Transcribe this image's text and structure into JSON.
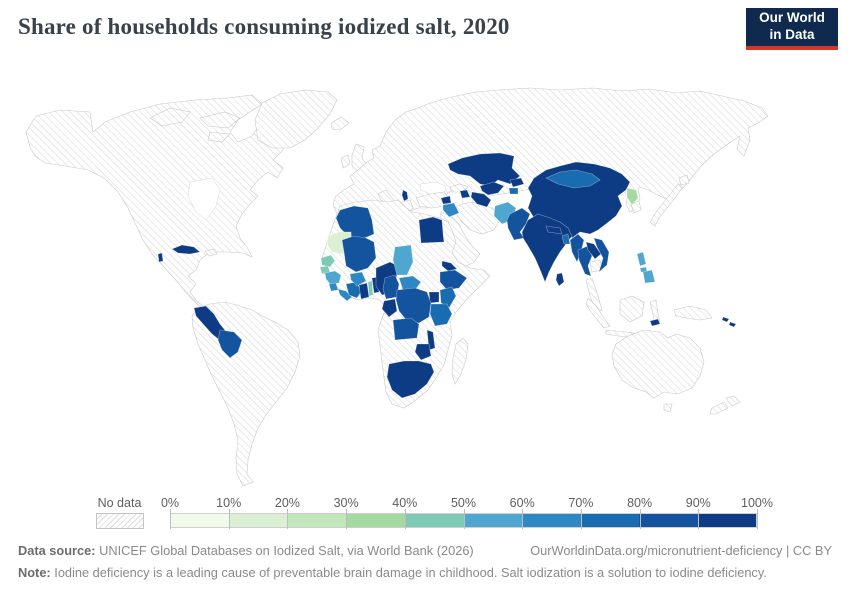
{
  "header": {
    "title": "Share of households consuming iodized salt, 2020",
    "logo_line1": "Our World",
    "logo_line2": "in Data"
  },
  "legend": {
    "no_data_label": "No data",
    "tick_labels": [
      "0%",
      "10%",
      "20%",
      "30%",
      "40%",
      "50%",
      "60%",
      "70%",
      "80%",
      "90%",
      "100%"
    ]
  },
  "footer": {
    "source_label": "Data source:",
    "source_text": " UNICEF Global Databases on Iodized Salt, via World Bank (2026)",
    "link_text": "OurWorldinData.org/micronutrient-deficiency | CC BY",
    "note_label": "Note:",
    "note_text": " Iodine deficiency is a leading cause of preventable brain damage in childhood. Salt iodization is a solution to iodine deficiency."
  },
  "chart_data": {
    "type": "choropleth_map",
    "title": "Share of households consuming iodized salt, 2020",
    "year": 2020,
    "unit": "% of households",
    "no_data_style": "diagonal-hatch",
    "color_scale": {
      "bins": [
        {
          "range": [
            0,
            10
          ],
          "color": "#f1faeb"
        },
        {
          "range": [
            10,
            20
          ],
          "color": "#dbf0d3"
        },
        {
          "range": [
            20,
            30
          ],
          "color": "#c1e6ba"
        },
        {
          "range": [
            30,
            40
          ],
          "color": "#a4d9a0"
        },
        {
          "range": [
            40,
            50
          ],
          "color": "#7fcab4"
        },
        {
          "range": [
            50,
            60
          ],
          "color": "#4fa6ce"
        },
        {
          "range": [
            60,
            70
          ],
          "color": "#2d88c3"
        },
        {
          "range": [
            70,
            80
          ],
          "color": "#1a6cb1"
        },
        {
          "range": [
            80,
            90
          ],
          "color": "#14549e"
        },
        {
          "range": [
            90,
            100
          ],
          "color": "#0e3c84"
        }
      ]
    },
    "countries": {
      "Cuba": 95,
      "Belize": 95,
      "Peru": 95,
      "Bolivia": 85,
      "Albania": 95,
      "Algeria": 85,
      "Egypt": 95,
      "Mauritania": 15,
      "Mali": 85,
      "Senegal": 45,
      "Gambia and Guinea-Bissau": 45,
      "Guinea": 55,
      "Sierra Leone": 65,
      "Liberia": 65,
      "Cote d'Ivoire": 75,
      "Burkina Faso": 65,
      "Ghana": 95,
      "Togo": 45,
      "Benin": 95,
      "Nigeria": 95,
      "Chad": 55,
      "Cameroon": 85,
      "Central African Republic": 65,
      "Eritrea": 95,
      "Ethiopia": 85,
      "Uganda": 95,
      "Kenya": 75,
      "Tanzania": 75,
      "Rwanda and Burundi": 95,
      "Democratic Republic of Congo": 85,
      "Congo": 95,
      "Angola": 85,
      "Malawi": 95,
      "Zimbabwe": 95,
      "South Africa": 95,
      "Syria": 95,
      "Iraq": 65,
      "Azerbaijan": 95,
      "Kazakhstan": 95,
      "Uzbekistan": 95,
      "Turkmenistan": 95,
      "Kyrgyzstan": 95,
      "Tajikistan": 75,
      "Afghanistan": 55,
      "Pakistan": 85,
      "India": 95,
      "Nepal": 95,
      "Sri Lanka": 95,
      "Bangladesh": 75,
      "China": 95,
      "Mongolia": 75,
      "North Korea": 35,
      "Myanmar": 85,
      "Thailand": 85,
      "Laos": 95,
      "Vietnam": 85,
      "Philippines": 55,
      "Timor-Leste": 95,
      "Solomon Islands": 95
    }
  }
}
